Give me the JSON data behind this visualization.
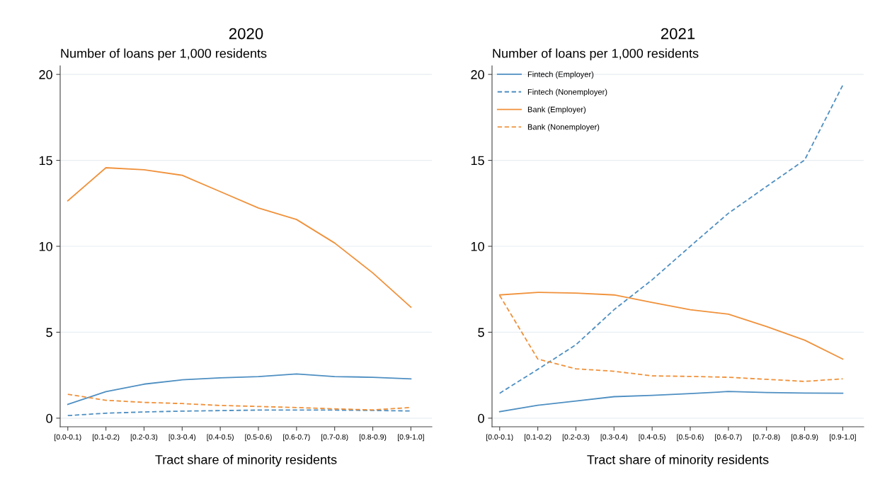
{
  "chart_data": [
    {
      "type": "line",
      "title": "2020",
      "subtitle": "Number of loans per 1,000 residents",
      "xlabel": "Tract share of minority residents",
      "categories": [
        "[0.0-0.1)",
        "[0.1-0.2)",
        "[0.2-0.3)",
        "[0.3-0.4)",
        "[0.4-0.5)",
        "[0.5-0.6)",
        "[0.6-0.7)",
        "[0.7-0.8)",
        "[0.8-0.9)",
        "[0.9-1.0]"
      ],
      "ylim": [
        -0.5,
        20.5
      ],
      "yticks": [
        0,
        5,
        10,
        15,
        20
      ],
      "grid": "y",
      "series": [
        {
          "color": "#4e8fc2",
          "line_style": "solid",
          "values": [
            0.8,
            1.54,
            1.98,
            2.23,
            2.35,
            2.42,
            2.57,
            2.42,
            2.38,
            2.29
          ]
        },
        {
          "color": "#4e8fc2",
          "line_style": "dashed",
          "values": [
            0.15,
            0.29,
            0.36,
            0.41,
            0.44,
            0.47,
            0.47,
            0.47,
            0.45,
            0.42
          ]
        },
        {
          "color": "#f0913a",
          "line_style": "solid",
          "values": [
            12.65,
            14.57,
            14.45,
            14.13,
            13.18,
            12.23,
            11.56,
            10.19,
            8.45,
            6.46
          ]
        },
        {
          "color": "#f0913a",
          "line_style": "dashed",
          "values": [
            1.39,
            1.04,
            0.92,
            0.85,
            0.74,
            0.68,
            0.62,
            0.54,
            0.48,
            0.62
          ]
        }
      ]
    },
    {
      "type": "line",
      "title": "2021",
      "subtitle": "Number of loans per 1,000 residents",
      "xlabel": "Tract share of minority residents",
      "categories": [
        "[0.0-0.1)",
        "[0.1-0.2)",
        "[0.2-0.3)",
        "[0.3-0.4)",
        "[0.4-0.5)",
        "[0.5-0.6)",
        "[0.6-0.7)",
        "[0.7-0.8)",
        "[0.8-0.9)",
        "[0.9-1.0]"
      ],
      "ylim": [
        -0.5,
        20.5
      ],
      "yticks": [
        0,
        5,
        10,
        15,
        20
      ],
      "grid": "y",
      "legend": "top left",
      "series": [
        {
          "name": "Fintech (Employer)",
          "color": "#4e8fc2",
          "line_style": "solid",
          "values": [
            0.38,
            0.75,
            1.0,
            1.25,
            1.33,
            1.43,
            1.55,
            1.49,
            1.46,
            1.45
          ]
        },
        {
          "name": "Fintech (Nonemployer)",
          "color": "#4e8fc2",
          "line_style": "dashed",
          "values": [
            1.45,
            2.84,
            4.27,
            6.31,
            8.05,
            10.0,
            11.92,
            13.48,
            15.02,
            19.37
          ]
        },
        {
          "name": "Bank (Employer)",
          "color": "#f0913a",
          "line_style": "solid",
          "values": [
            7.17,
            7.32,
            7.28,
            7.17,
            6.73,
            6.31,
            6.05,
            5.33,
            4.54,
            3.44
          ]
        },
        {
          "name": "Bank (Nonemployer)",
          "color": "#f0913a",
          "line_style": "dashed",
          "values": [
            7.14,
            3.44,
            2.87,
            2.73,
            2.46,
            2.43,
            2.38,
            2.26,
            2.14,
            2.29
          ]
        }
      ]
    }
  ]
}
